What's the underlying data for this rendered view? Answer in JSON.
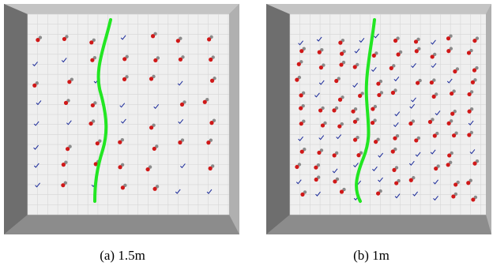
{
  "figure": {
    "panels": [
      {
        "caption": "(a) 1.5m"
      },
      {
        "caption": "(b) 1m"
      }
    ]
  }
}
